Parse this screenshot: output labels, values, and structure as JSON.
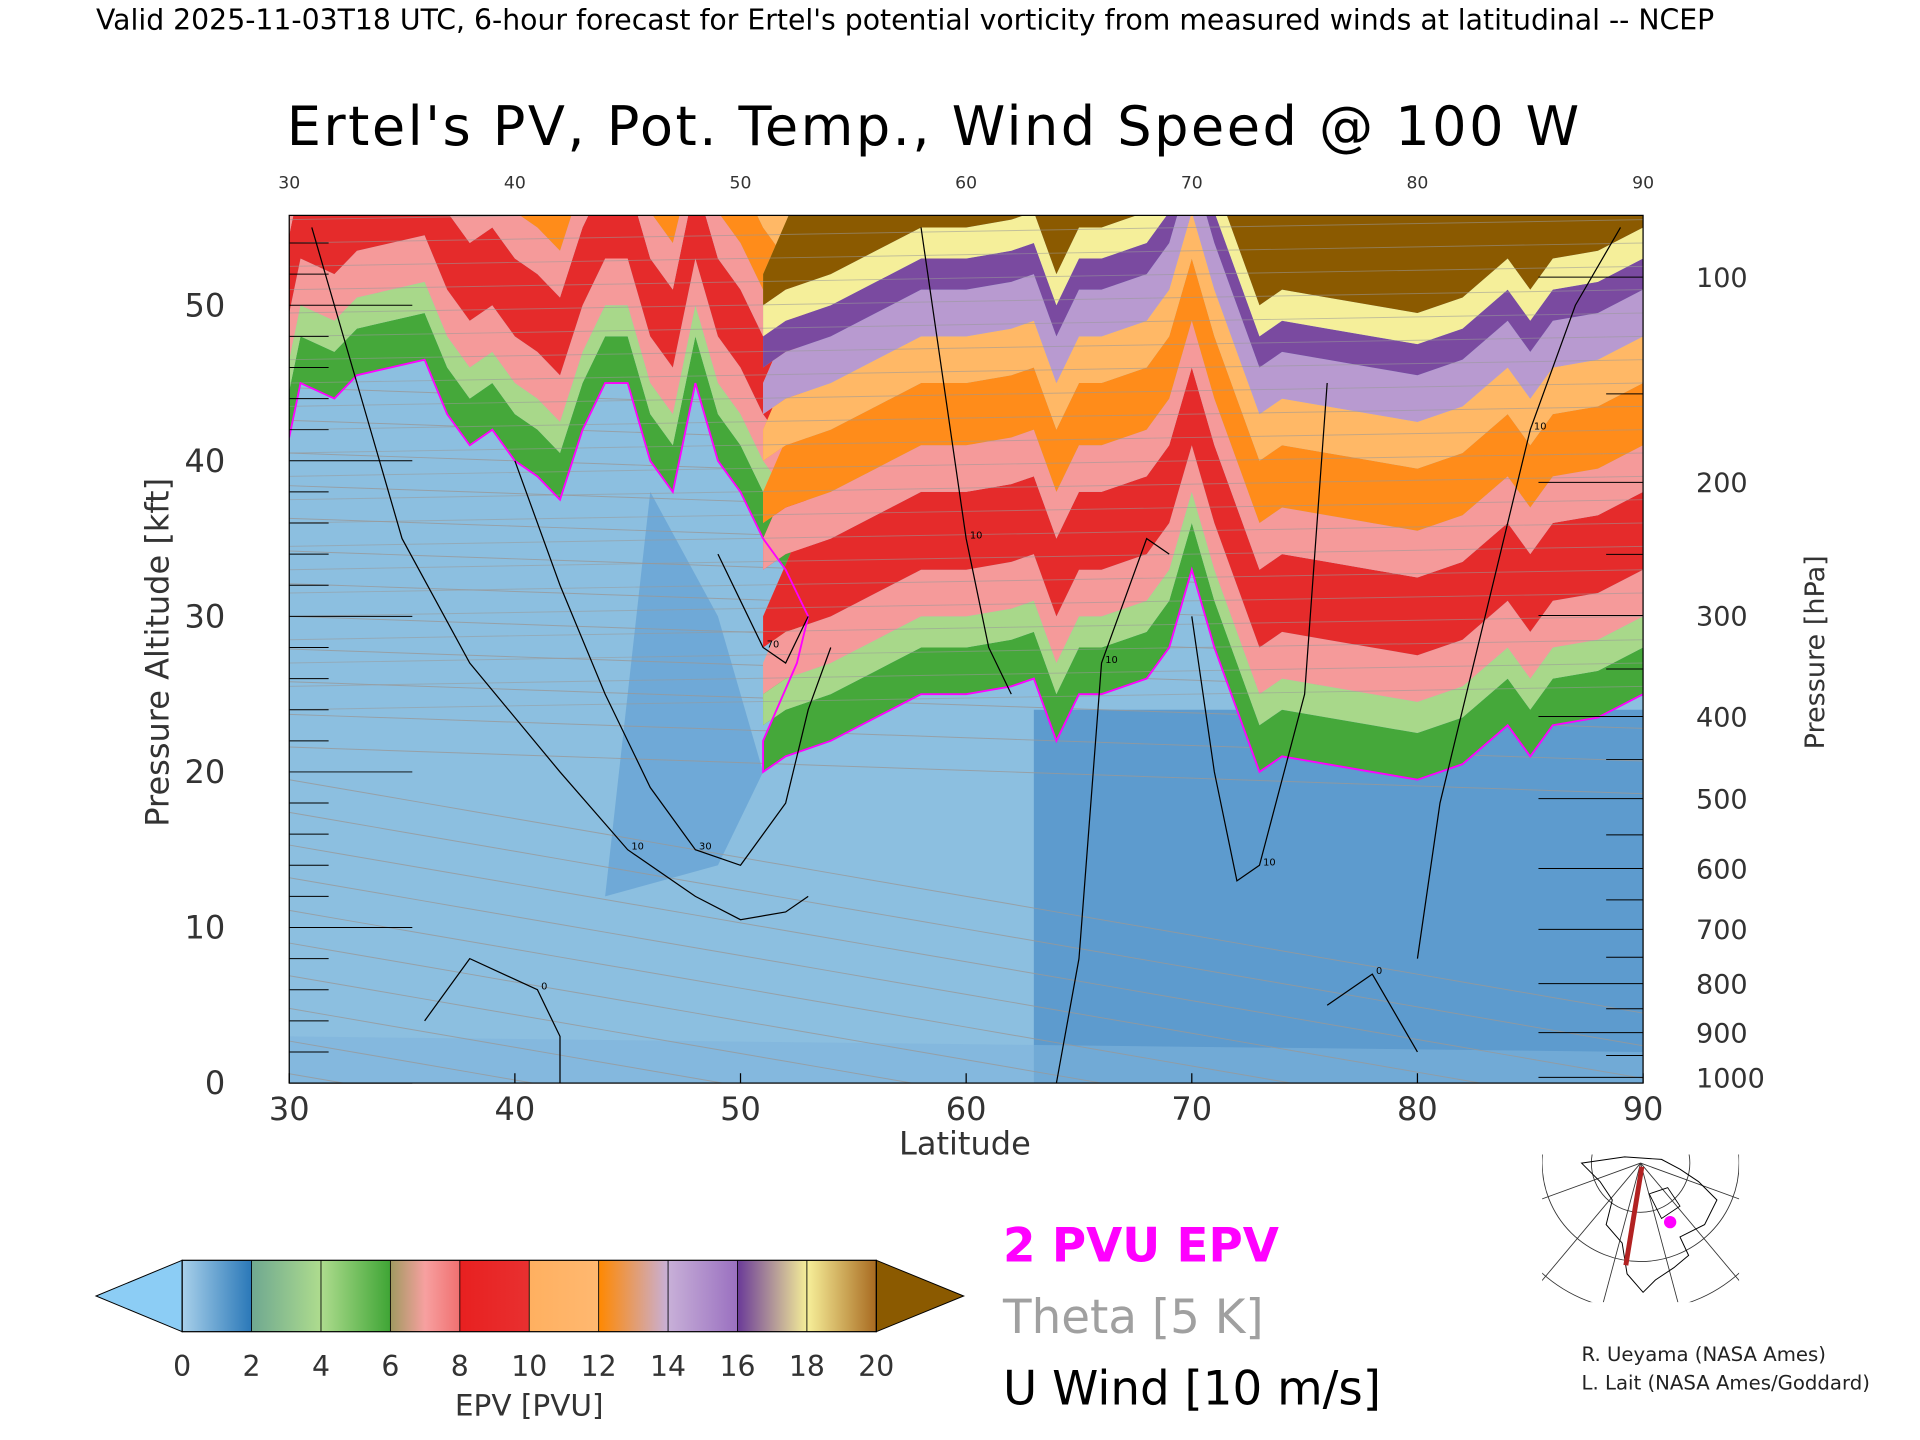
{
  "header": {
    "subtitle": "Valid 2025-11-03T18 UTC, 6-hour forecast for Ertel's potential vorticity from measured winds at latitudinal -- NCEP",
    "title": "Ertel's PV, Pot. Temp., Wind Speed @ 100 W"
  },
  "chart_data": {
    "type": "heatmap",
    "title": "Ertel's PV, Pot. Temp., Wind Speed @ 100 W",
    "xlabel": "Latitude",
    "ylabel": "Pressure Altitude [kft]",
    "y2label": "Pressure [hPa]",
    "xlim": [
      30,
      90
    ],
    "ylim": [
      0,
      55.8
    ],
    "x_ticks": [
      "30",
      "40",
      "50",
      "60",
      "70",
      "80",
      "90"
    ],
    "x_tick_values": [
      30,
      40,
      50,
      60,
      70,
      80,
      90
    ],
    "y_ticks": [
      "0",
      "10",
      "20",
      "30",
      "40",
      "50"
    ],
    "y_tick_values": [
      0,
      10,
      20,
      30,
      40,
      50
    ],
    "pressure_ticks": [
      "100",
      "200",
      "300",
      "400",
      "500",
      "600",
      "700",
      "800",
      "900",
      "1000"
    ],
    "pressure_tick_values": [
      100,
      200,
      300,
      400,
      500,
      600,
      700,
      800,
      900,
      1000
    ],
    "tropopause_2pvu": {
      "label": "2 PVU EPV",
      "color": "#ff00ff",
      "lat": [
        30,
        30.5,
        32,
        33,
        36,
        37,
        38,
        39,
        40,
        41,
        42,
        43,
        44,
        45,
        46,
        47,
        48,
        49,
        50,
        51,
        52,
        53,
        52.5,
        51,
        51,
        52,
        54,
        56,
        58,
        60,
        62,
        63,
        64,
        65,
        66,
        67,
        68,
        69,
        70,
        71,
        72,
        73,
        74,
        76,
        78,
        80,
        82,
        84,
        85,
        86,
        88,
        90
      ],
      "kft": [
        41.5,
        45,
        44,
        45.5,
        46.5,
        43,
        41,
        42,
        40,
        39,
        37.5,
        42,
        45,
        45,
        40,
        38,
        45,
        40,
        38,
        35,
        33,
        30,
        27,
        22,
        20,
        21,
        22,
        23.5,
        25,
        25,
        25.5,
        26,
        22,
        25,
        25,
        25.5,
        26,
        28,
        33,
        28,
        24,
        20,
        21,
        20.5,
        20,
        19.5,
        20.5,
        23,
        21,
        23,
        23.5,
        25
      ]
    },
    "pv_bands_above_tropopause_kft": [
      {
        "from": 0,
        "to": 3,
        "pvu": "4-6",
        "color": "#45a83a"
      },
      {
        "from": 3,
        "to": 5,
        "pvu": "2-4",
        "color": "#a8d88a"
      },
      {
        "from": 5,
        "to": 8,
        "pvu": "6-8",
        "color": "#f59a9a"
      },
      {
        "from": 8,
        "to": 13,
        "pvu": "8-10",
        "color": "#e52b2b"
      },
      {
        "from": 13,
        "to": 16,
        "pvu": "8-10",
        "color": "#f59a9a"
      },
      {
        "from": 16,
        "to": 20,
        "pvu": "12-14",
        "color": "#ff8c1a"
      },
      {
        "from": 20,
        "to": 23,
        "pvu": "10-12",
        "color": "#ffb866"
      },
      {
        "from": 23,
        "to": 26,
        "pvu": "14-16",
        "color": "#b89ad0"
      },
      {
        "from": 26,
        "to": 28,
        "pvu": "16-18",
        "color": "#7a4aa0"
      },
      {
        "from": 28,
        "to": 30,
        "pvu": "18-20",
        "color": "#f5ef9a"
      },
      {
        "from": 30,
        "to": 99,
        "pvu": ">20",
        "color": "#8b5a00"
      }
    ],
    "u_wind_contours": [
      {
        "level": "10",
        "lat": [
          31,
          33,
          35,
          38,
          42,
          45,
          48,
          50,
          52,
          53
        ],
        "kft": [
          55,
          45,
          35,
          27,
          20,
          15,
          12,
          10.5,
          11,
          12
        ]
      },
      {
        "level": "30",
        "lat": [
          40,
          42,
          44,
          46,
          48,
          50,
          52,
          53,
          54
        ],
        "kft": [
          40,
          32,
          25,
          19,
          15,
          14,
          18,
          24,
          28
        ]
      },
      {
        "level": "70",
        "lat": [
          49,
          50,
          51,
          52,
          53
        ],
        "kft": [
          34,
          31,
          28,
          27,
          30
        ]
      },
      {
        "level": "10",
        "lat": [
          58,
          59,
          60,
          61,
          62
        ],
        "kft": [
          55,
          45,
          35,
          28,
          25
        ]
      },
      {
        "level": "10",
        "lat": [
          64,
          65,
          66,
          68,
          69
        ],
        "kft": [
          0,
          8,
          27,
          35,
          34
        ]
      },
      {
        "level": "10",
        "lat": [
          70,
          71,
          72,
          73,
          75,
          76
        ],
        "kft": [
          30,
          20,
          13,
          14,
          25,
          45
        ]
      },
      {
        "level": "10",
        "lat": [
          80,
          81,
          83,
          85,
          87,
          89
        ],
        "kft": [
          8,
          18,
          30,
          42,
          50,
          55
        ]
      },
      {
        "level": "0",
        "lat": [
          36,
          38,
          41,
          42,
          42
        ],
        "kft": [
          4,
          8,
          6,
          3,
          0
        ]
      },
      {
        "level": "0",
        "lat": [
          76,
          78,
          80
        ],
        "kft": [
          5,
          7,
          2
        ]
      }
    ],
    "theta_contour_interval_K": 5,
    "colorbar": {
      "label": "EPV [PVU]",
      "ticks": [
        "0",
        "2",
        "4",
        "6",
        "8",
        "10",
        "12",
        "14",
        "16",
        "18",
        "20"
      ],
      "under_color": "#8ccdf5",
      "over_color": "#8b5a00",
      "segments": [
        [
          "#a8d0ea",
          "#2a78b8"
        ],
        [
          "#6fa890",
          "#aedc8e",
          "#3fa535"
        ],
        [
          "#a09a60",
          "#f7a0a0",
          "#f07070"
        ],
        [
          "#e82020",
          "#e83030"
        ],
        [
          "#ffb060",
          "#ffb870"
        ],
        [
          "#ff8800",
          "#c8b0d8",
          "#9a70c0"
        ],
        [
          "#6a3a98",
          "#f5ee98"
        ],
        [
          "#f7f09a",
          "#a86a20"
        ]
      ]
    }
  },
  "legend": {
    "pv_label": "2 PVU EPV",
    "theta_label": "Theta [5 K]",
    "wind_label": "U Wind [10 m/s]"
  },
  "credits": {
    "line1": "R. Ueyama (NASA Ames)",
    "line2": "L. Lait (NASA Ames/Goddard)"
  },
  "colors": {
    "pv_line": "#ff00ff",
    "theta": "#999999",
    "map_section": "#b22222",
    "map_point": "#ff00ff"
  }
}
